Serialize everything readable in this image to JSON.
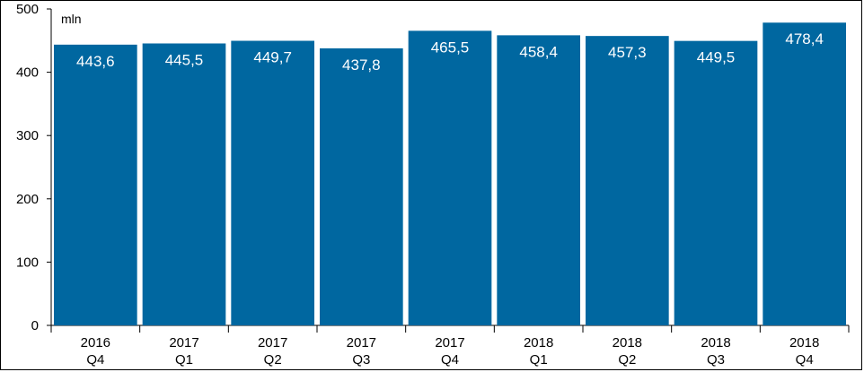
{
  "chart_data": {
    "type": "bar",
    "unit": "mln",
    "categories": [
      [
        "2016",
        "Q4"
      ],
      [
        "2017",
        "Q1"
      ],
      [
        "2017",
        "Q2"
      ],
      [
        "2017",
        "Q3"
      ],
      [
        "2017",
        "Q4"
      ],
      [
        "2018",
        "Q1"
      ],
      [
        "2018",
        "Q2"
      ],
      [
        "2018",
        "Q3"
      ],
      [
        "2018",
        "Q4"
      ]
    ],
    "values": [
      443.6,
      445.5,
      449.7,
      437.8,
      465.5,
      458.4,
      457.3,
      449.5,
      478.4
    ],
    "data_labels": [
      "443,6",
      "445,5",
      "449,7",
      "437,8",
      "465,5",
      "458,4",
      "457,3",
      "449,5",
      "478,4"
    ],
    "ylim": [
      0,
      500
    ],
    "yticks": [
      0,
      100,
      200,
      300,
      400,
      500
    ],
    "grid": false,
    "legend": "none",
    "bar_color": "#0067A0",
    "label_color": "#FFFFFF"
  }
}
